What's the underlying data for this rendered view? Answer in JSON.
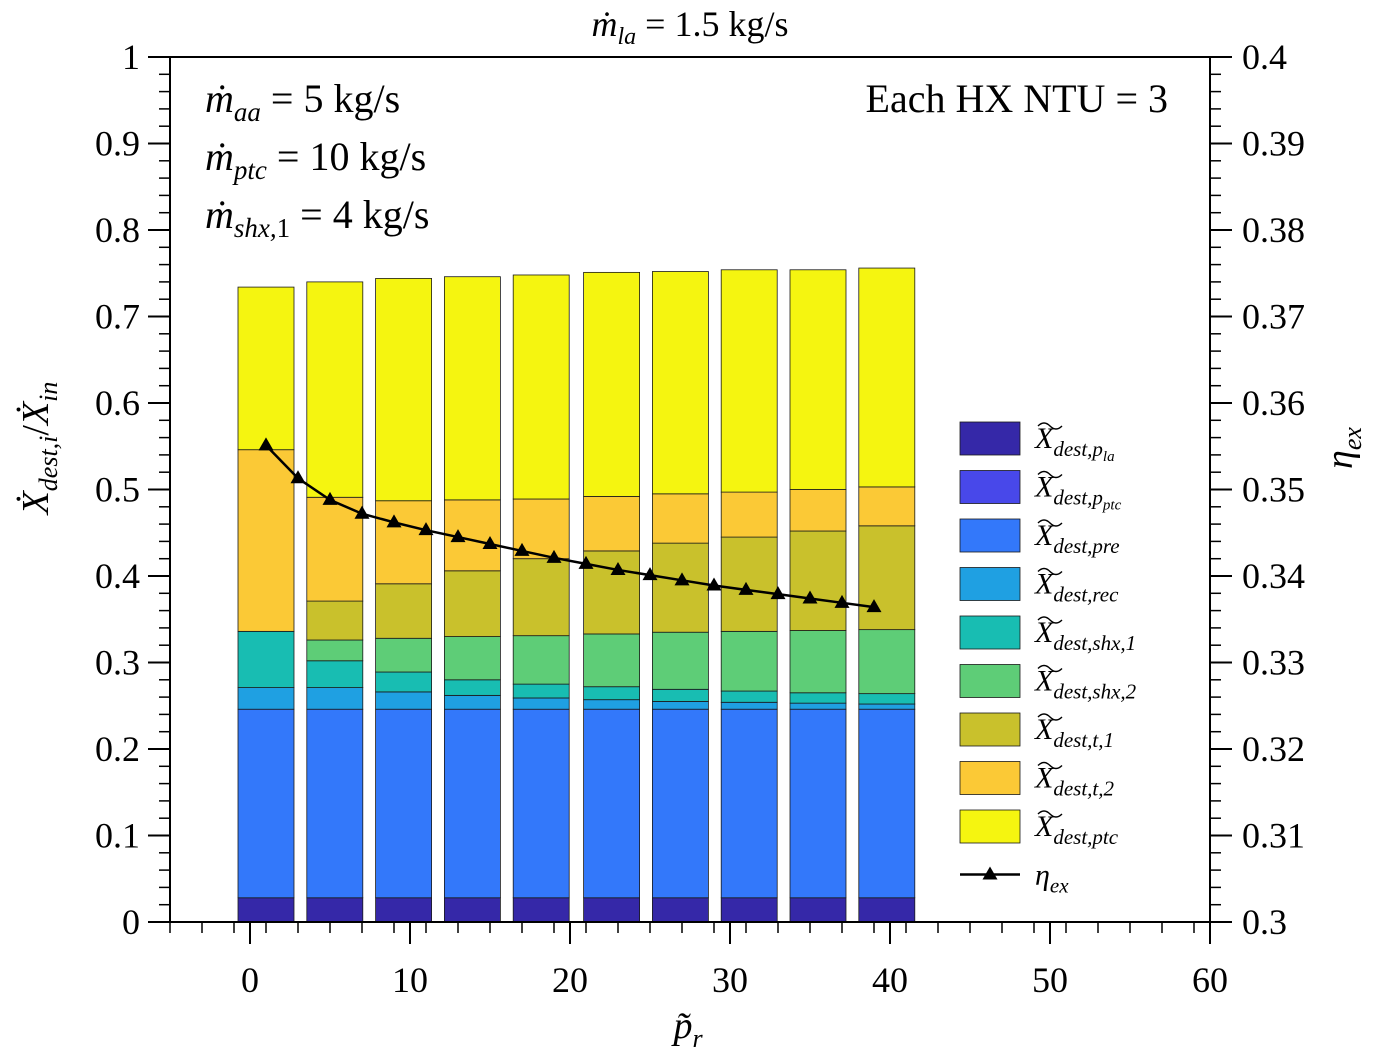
{
  "title": "ṁ_la = 1.5 kg/s",
  "annotations": {
    "left": [
      "ṁ_aa = 5 kg/s",
      "ṁ_ptc = 10 kg/s",
      "ṁ_shx,1 = 4 kg/s"
    ],
    "right": "Each HX NTU = 3"
  },
  "chart_data": {
    "type": "bar",
    "stacked": true,
    "xlabel": "p̃_r",
    "ylabel": "Ẋ_dest,i/Ẋ_in",
    "y2label": "η_ex",
    "xlim": [
      -5,
      60
    ],
    "ylim": [
      0,
      1
    ],
    "y2lim": [
      0.3,
      0.4
    ],
    "xticks": [
      0,
      10,
      20,
      30,
      40,
      50,
      60
    ],
    "yticks": [
      0,
      0.1,
      0.2,
      0.3,
      0.4,
      0.5,
      0.6,
      0.7,
      0.8,
      0.9,
      1
    ],
    "y2ticks": [
      0.3,
      0.31,
      0.32,
      0.33,
      0.34,
      0.35,
      0.36,
      0.37,
      0.38,
      0.39,
      0.4
    ],
    "legend_position": "right",
    "bar_x": [
      1,
      5.3,
      9.6,
      13.9,
      18.2,
      22.6,
      26.9,
      31.2,
      35.5,
      39.8
    ],
    "bar_width": 3.5,
    "series": [
      {
        "name": "X̃_dest,p_la",
        "sub": "dest,p",
        "subsub": "la",
        "color": "#3528a8",
        "values": [
          0.028,
          0.028,
          0.028,
          0.028,
          0.028,
          0.028,
          0.028,
          0.028,
          0.028,
          0.028
        ]
      },
      {
        "name": "X̃_dest,p_ptc",
        "sub": "dest,p",
        "subsub": "ptc",
        "color": "#4848ea",
        "values": [
          0,
          0,
          0,
          0,
          0,
          0,
          0,
          0,
          0,
          0
        ]
      },
      {
        "name": "X̃_dest,pre",
        "sub": "dest,pre",
        "color": "#3378fa",
        "values": [
          0.218,
          0.218,
          0.218,
          0.218,
          0.218,
          0.218,
          0.218,
          0.218,
          0.218,
          0.218
        ]
      },
      {
        "name": "X̃_dest,rec",
        "sub": "dest,rec",
        "color": "#1fa0e2",
        "values": [
          0.025,
          0.025,
          0.02,
          0.016,
          0.013,
          0.011,
          0.009,
          0.008,
          0.007,
          0.006
        ]
      },
      {
        "name": "X̃_dest,shx,1",
        "sub": "dest,shx,1",
        "color": "#18bdb2",
        "values": [
          0.065,
          0.031,
          0.023,
          0.018,
          0.016,
          0.015,
          0.014,
          0.013,
          0.012,
          0.012
        ]
      },
      {
        "name": "X̃_dest,shx,2",
        "sub": "dest,shx,2",
        "color": "#5ecd77",
        "values": [
          0,
          0.024,
          0.039,
          0.05,
          0.056,
          0.061,
          0.066,
          0.069,
          0.072,
          0.074
        ]
      },
      {
        "name": "X̃_dest,t,1",
        "sub": "dest,t,1",
        "color": "#c9c12c",
        "values": [
          0,
          0.045,
          0.063,
          0.076,
          0.089,
          0.096,
          0.103,
          0.109,
          0.115,
          0.12
        ]
      },
      {
        "name": "X̃_dest,t,2",
        "sub": "dest,t,2",
        "color": "#fbc936",
        "values": [
          0.21,
          0.12,
          0.096,
          0.082,
          0.069,
          0.063,
          0.057,
          0.052,
          0.048,
          0.045
        ]
      },
      {
        "name": "X̃_dest,ptc",
        "sub": "dest,ptc",
        "color": "#f5f510",
        "values": [
          0.188,
          0.249,
          0.257,
          0.258,
          0.259,
          0.259,
          0.257,
          0.257,
          0.254,
          0.253
        ]
      }
    ],
    "eta_ex": {
      "name": "η_ex",
      "x": [
        1,
        3,
        5,
        7,
        9,
        11,
        13,
        15,
        17,
        19,
        21,
        23,
        25,
        27,
        29,
        31,
        33,
        35,
        37,
        39
      ],
      "y": [
        0.3551,
        0.3513,
        0.3488,
        0.3472,
        0.3462,
        0.3453,
        0.3445,
        0.3437,
        0.3429,
        0.3421,
        0.3414,
        0.3407,
        0.3401,
        0.3395,
        0.3389,
        0.3384,
        0.3379,
        0.3374,
        0.3369,
        0.3364
      ]
    }
  }
}
